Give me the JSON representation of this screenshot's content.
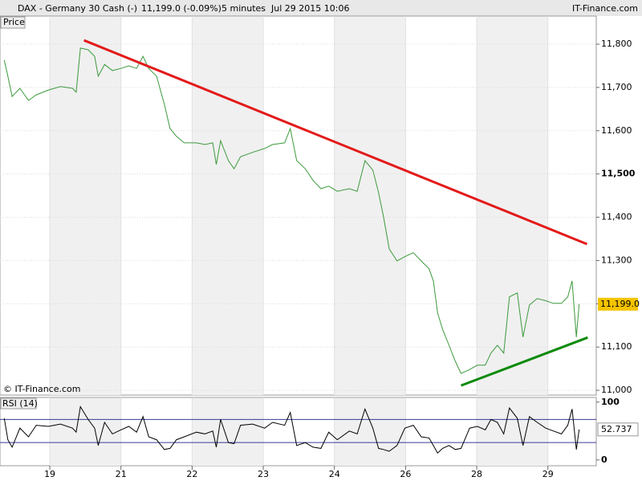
{
  "header": {
    "instrument": "DAX - Germany 30 Cash (-)",
    "quote": "11,199.0 (-0.09%)",
    "interval": "5 minutes",
    "timestamp": "Jul 29 2015 10:06",
    "brand": "IT-Finance.com"
  },
  "chart_data": [
    {
      "type": "line",
      "title": "Price",
      "watermark": "© IT-Finance.com",
      "x": [
        -0.64,
        -0.59,
        -0.53,
        -0.42,
        -0.3,
        -0.19,
        -0.02,
        0.15,
        0.32,
        0.37,
        0.43,
        0.54,
        0.63,
        0.68,
        0.77,
        0.88,
        1.0,
        1.11,
        1.22,
        1.31,
        1.39,
        1.5,
        1.61,
        1.69,
        1.78,
        1.89,
        2.06,
        2.18,
        2.29,
        2.34,
        2.4,
        2.51,
        2.59,
        2.68,
        2.85,
        3.02,
        3.13,
        3.3,
        3.38,
        3.47,
        3.59,
        3.7,
        3.81,
        3.92,
        4.04,
        4.21,
        4.32,
        4.43,
        4.54,
        4.62,
        4.69,
        4.77,
        4.88,
        4.99,
        5.11,
        5.22,
        5.33,
        5.39,
        5.45,
        5.52,
        5.61,
        5.7,
        5.78,
        5.9,
        6.01,
        6.12,
        6.2,
        6.29,
        6.38,
        6.46,
        6.57,
        6.65,
        6.74,
        6.85,
        6.97,
        7.08,
        7.19,
        7.28,
        7.34,
        7.4,
        7.44
      ],
      "series": [
        {
          "color": "#3c9a3c",
          "values": [
            11763,
            11726,
            11679,
            11698,
            11670,
            11683,
            11694,
            11702,
            11698,
            11689,
            11791,
            11787,
            11772,
            11726,
            11753,
            11739,
            11744,
            11750,
            11744,
            11772,
            11744,
            11726,
            11661,
            11605,
            11587,
            11572,
            11572,
            11568,
            11572,
            11522,
            11577,
            11531,
            11512,
            11540,
            11550,
            11559,
            11568,
            11572,
            11605,
            11531,
            11512,
            11485,
            11466,
            11472,
            11460,
            11466,
            11460,
            11531,
            11509,
            11457,
            11401,
            11327,
            11299,
            11309,
            11318,
            11299,
            11281,
            11253,
            11179,
            11141,
            11104,
            11067,
            11039,
            11048,
            11058,
            11058,
            11086,
            11104,
            11086,
            11216,
            11225,
            11123,
            11197,
            11212,
            11207,
            11201,
            11201,
            11216,
            11253,
            11123,
            11199
          ]
        }
      ],
      "trendlines": [
        {
          "color": "#e31a1a",
          "x": [
            0.48,
            7.55
          ],
          "y": [
            11809,
            11338
          ]
        },
        {
          "color": "#0a8a0a",
          "x": [
            5.78,
            7.56
          ],
          "y": [
            11011,
            11122
          ]
        }
      ],
      "price_marker": {
        "value": 11199,
        "label": "11,199.0"
      },
      "xlim": [
        -0.7,
        7.68
      ],
      "ylim": [
        10989,
        11865
      ],
      "yticks": [
        {
          "value": 11000,
          "label": "11,000"
        },
        {
          "value": 11100,
          "label": "11,100"
        },
        {
          "value": 11200,
          "label": "11,200"
        },
        {
          "value": 11300,
          "label": "11,300"
        },
        {
          "value": 11400,
          "label": "11,400"
        },
        {
          "value": 11500,
          "label": "11,500"
        },
        {
          "value": 11600,
          "label": "11,600"
        },
        {
          "value": 11700,
          "label": "11,700"
        },
        {
          "value": 11800,
          "label": "11,800"
        }
      ],
      "grid": true
    },
    {
      "type": "line",
      "title": "RSI (14)",
      "series": [
        {
          "color": "#000000",
          "values": [
            72,
            35,
            22,
            55,
            40,
            60,
            58,
            62,
            55,
            48,
            92,
            70,
            55,
            25,
            65,
            45,
            52,
            58,
            48,
            75,
            40,
            35,
            18,
            20,
            35,
            40,
            48,
            45,
            50,
            22,
            70,
            30,
            28,
            60,
            62,
            55,
            65,
            60,
            82,
            25,
            30,
            22,
            20,
            48,
            35,
            50,
            45,
            88,
            55,
            20,
            18,
            15,
            25,
            55,
            60,
            40,
            38,
            25,
            12,
            20,
            25,
            18,
            20,
            55,
            58,
            52,
            70,
            65,
            45,
            90,
            72,
            25,
            75,
            65,
            55,
            50,
            45,
            60,
            88,
            18,
            52.737
          ]
        }
      ],
      "levels": [
        30,
        70
      ],
      "last_value": 52.737,
      "ylim": [
        -10,
        108
      ],
      "yticks": [
        0,
        100
      ],
      "xlim": [
        -0.7,
        7.68
      ],
      "xticks": [
        {
          "value": 0,
          "label": "19"
        },
        {
          "value": 1,
          "label": "21"
        },
        {
          "value": 2,
          "label": "22"
        },
        {
          "value": 3,
          "label": "23"
        },
        {
          "value": 4,
          "label": "24"
        },
        {
          "value": 5,
          "label": "26"
        },
        {
          "value": 6,
          "label": "28"
        },
        {
          "value": 7,
          "label": "29"
        }
      ]
    }
  ]
}
